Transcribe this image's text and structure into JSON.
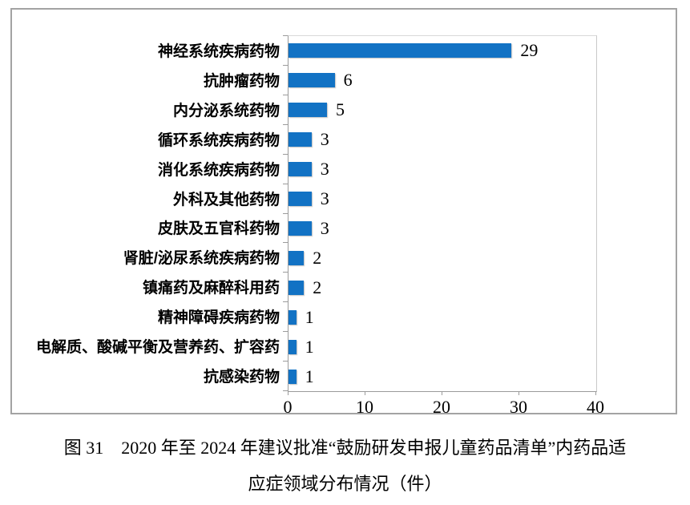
{
  "figure": {
    "caption_line1": "图 31　2020 年至 2024 年建议批准“鼓励研发申报儿童药品清单”内药品适",
    "caption_line2": "应症领域分布情况（件）"
  },
  "chart_data": {
    "type": "bar",
    "orientation": "horizontal",
    "title": "",
    "xlabel": "",
    "ylabel": "",
    "categories": [
      "神经系统疾病药物",
      "抗肿瘤药物",
      "内分泌系统药物",
      "循环系统疾病药物",
      "消化系统疾病药物",
      "外科及其他药物",
      "皮肤及五官科药物",
      "肾脏/泌尿系统疾病药物",
      "镇痛药及麻醉科用药",
      "精神障碍疾病药物",
      "电解质、酸碱平衡及营养药、扩容药",
      "抗感染药物"
    ],
    "values": [
      29,
      6,
      5,
      3,
      3,
      3,
      3,
      2,
      2,
      1,
      1,
      1
    ],
    "value_labels": [
      "29",
      "6",
      "5",
      "3",
      "3",
      "3",
      "3",
      "2",
      "2",
      "1",
      "1",
      "1"
    ],
    "xlim": [
      0,
      40
    ],
    "x_ticks": [
      0,
      10,
      20,
      30,
      40
    ],
    "x_tick_labels": [
      "0",
      "10",
      "20",
      "30",
      "40"
    ],
    "grid": false,
    "legend": null,
    "bar_color": "#1272c4",
    "axis_color": "#9b9b9b",
    "chart_border_color": "#a3a3a3"
  }
}
